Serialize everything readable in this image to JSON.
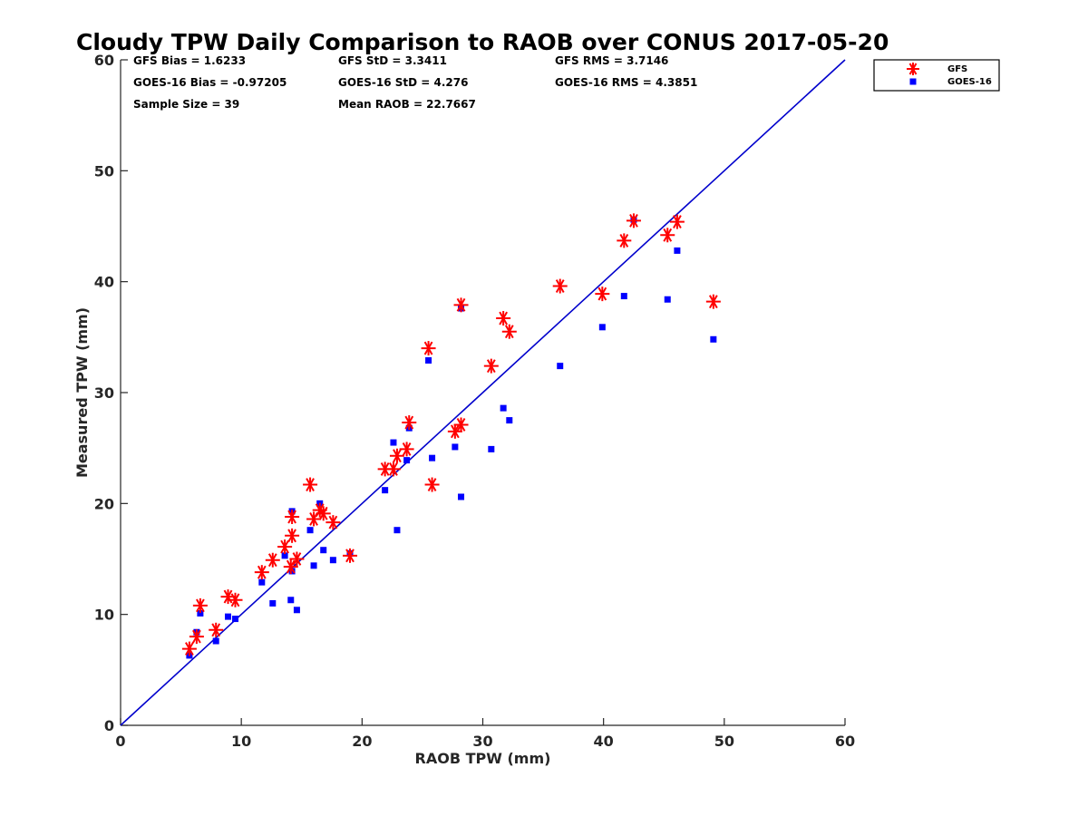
{
  "chart_data": {
    "type": "scatter",
    "title": "Cloudy TPW Daily Comparison to RAOB over CONUS 2017-05-20",
    "xlabel": "RAOB TPW (mm)",
    "ylabel": "Measured TPW (mm)",
    "xlim": [
      0,
      60
    ],
    "ylim": [
      0,
      60
    ],
    "xticks": [
      "0",
      "10",
      "20",
      "30",
      "40",
      "50",
      "60"
    ],
    "yticks": [
      "0",
      "10",
      "20",
      "30",
      "40",
      "50",
      "60"
    ],
    "grid": false,
    "legend_position": "top-right-outside",
    "reference_line": {
      "from": [
        0,
        0
      ],
      "to": [
        60,
        60
      ],
      "color": "#0000cc"
    },
    "stats": {
      "gfs_bias": "GFS Bias = 1.6233",
      "goes_bias": "GOES-16 Bias = -0.97205",
      "sample_size": "Sample Size = 39",
      "gfs_std": "GFS StD = 3.3411",
      "goes_std": "GOES-16 StD = 4.276",
      "mean_raob": "Mean RAOB = 22.7667",
      "gfs_rms": "GFS RMS = 3.7146",
      "goes_rms": "GOES-16 RMS = 4.3851"
    },
    "series": [
      {
        "name": "GFS",
        "marker": "asterisk",
        "color": "#ff0000",
        "points": [
          [
            5.7,
            6.9
          ],
          [
            6.3,
            8.0
          ],
          [
            6.6,
            10.8
          ],
          [
            7.9,
            8.6
          ],
          [
            8.9,
            11.6
          ],
          [
            9.5,
            11.3
          ],
          [
            11.7,
            13.8
          ],
          [
            12.6,
            14.9
          ],
          [
            13.6,
            16.1
          ],
          [
            14.1,
            14.3
          ],
          [
            14.2,
            17.1
          ],
          [
            14.2,
            18.8
          ],
          [
            14.6,
            15.0
          ],
          [
            15.7,
            21.7
          ],
          [
            16.0,
            18.6
          ],
          [
            16.5,
            19.4
          ],
          [
            16.8,
            19.1
          ],
          [
            17.6,
            18.3
          ],
          [
            19.0,
            15.3
          ],
          [
            21.9,
            23.1
          ],
          [
            22.6,
            23.1
          ],
          [
            22.9,
            24.3
          ],
          [
            23.7,
            24.9
          ],
          [
            23.9,
            27.3
          ],
          [
            25.5,
            34.0
          ],
          [
            25.8,
            21.7
          ],
          [
            27.7,
            26.5
          ],
          [
            28.2,
            27.1
          ],
          [
            28.2,
            37.9
          ],
          [
            30.7,
            32.4
          ],
          [
            31.7,
            36.7
          ],
          [
            32.2,
            35.5
          ],
          [
            36.4,
            39.6
          ],
          [
            39.9,
            38.9
          ],
          [
            41.7,
            43.7
          ],
          [
            42.5,
            45.5
          ],
          [
            45.3,
            44.2
          ],
          [
            46.1,
            45.4
          ],
          [
            49.1,
            38.2
          ]
        ]
      },
      {
        "name": "GOES-16",
        "marker": "square",
        "color": "#0000ff",
        "points": [
          [
            5.7,
            6.3
          ],
          [
            6.3,
            8.4
          ],
          [
            6.6,
            10.1
          ],
          [
            7.9,
            7.6
          ],
          [
            8.9,
            9.8
          ],
          [
            9.5,
            9.6
          ],
          [
            11.7,
            12.9
          ],
          [
            12.6,
            11.0
          ],
          [
            13.6,
            15.3
          ],
          [
            14.1,
            11.3
          ],
          [
            14.2,
            13.9
          ],
          [
            14.2,
            19.3
          ],
          [
            14.6,
            10.4
          ],
          [
            15.7,
            17.6
          ],
          [
            16.0,
            14.4
          ],
          [
            16.5,
            20.0
          ],
          [
            16.8,
            15.8
          ],
          [
            17.6,
            14.9
          ],
          [
            19.0,
            15.5
          ],
          [
            21.9,
            21.2
          ],
          [
            22.6,
            25.5
          ],
          [
            22.9,
            17.6
          ],
          [
            23.7,
            23.9
          ],
          [
            23.9,
            26.8
          ],
          [
            25.5,
            32.9
          ],
          [
            25.8,
            24.1
          ],
          [
            27.7,
            25.1
          ],
          [
            28.2,
            20.6
          ],
          [
            28.2,
            37.6
          ],
          [
            30.7,
            24.9
          ],
          [
            31.7,
            28.6
          ],
          [
            32.2,
            27.5
          ],
          [
            36.4,
            32.4
          ],
          [
            39.9,
            35.9
          ],
          [
            41.7,
            38.7
          ],
          [
            42.5,
            45.6
          ],
          [
            45.3,
            38.4
          ],
          [
            46.1,
            42.8
          ],
          [
            49.1,
            34.8
          ]
        ]
      }
    ]
  }
}
